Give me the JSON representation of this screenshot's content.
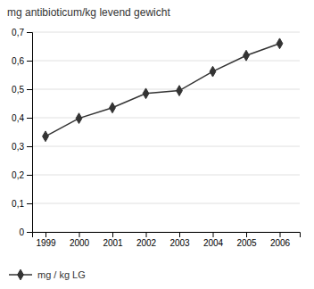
{
  "chart_data": {
    "type": "line",
    "title": "mg antibioticum/kg levend gewicht",
    "x": [
      1999,
      2000,
      2001,
      2002,
      2003,
      2004,
      2005,
      2006
    ],
    "series": [
      {
        "name": "mg / kg LG",
        "color": "#333333",
        "marker": "diamond",
        "values": [
          0.335,
          0.398,
          0.435,
          0.485,
          0.495,
          0.562,
          0.618,
          0.66
        ]
      }
    ],
    "xlim": [
      1998.6,
      2006.6
    ],
    "xticks": [
      1999,
      2000,
      2001,
      2002,
      2003,
      2004,
      2005,
      2006
    ],
    "ylim": [
      0,
      0.7
    ],
    "yticks": [
      0,
      {
        "value": 0.1,
        "label": "0,1"
      },
      {
        "value": 0.2,
        "label": "0,2"
      },
      {
        "value": 0.3,
        "label": "0,3"
      },
      {
        "value": 0.4,
        "label": "0,4"
      },
      {
        "value": 0.5,
        "label": "0,5"
      },
      {
        "value": 0.6,
        "label": "0,6"
      },
      {
        "value": 0.7,
        "label": "0,7"
      }
    ],
    "grid": true,
    "legend": "bottom"
  }
}
